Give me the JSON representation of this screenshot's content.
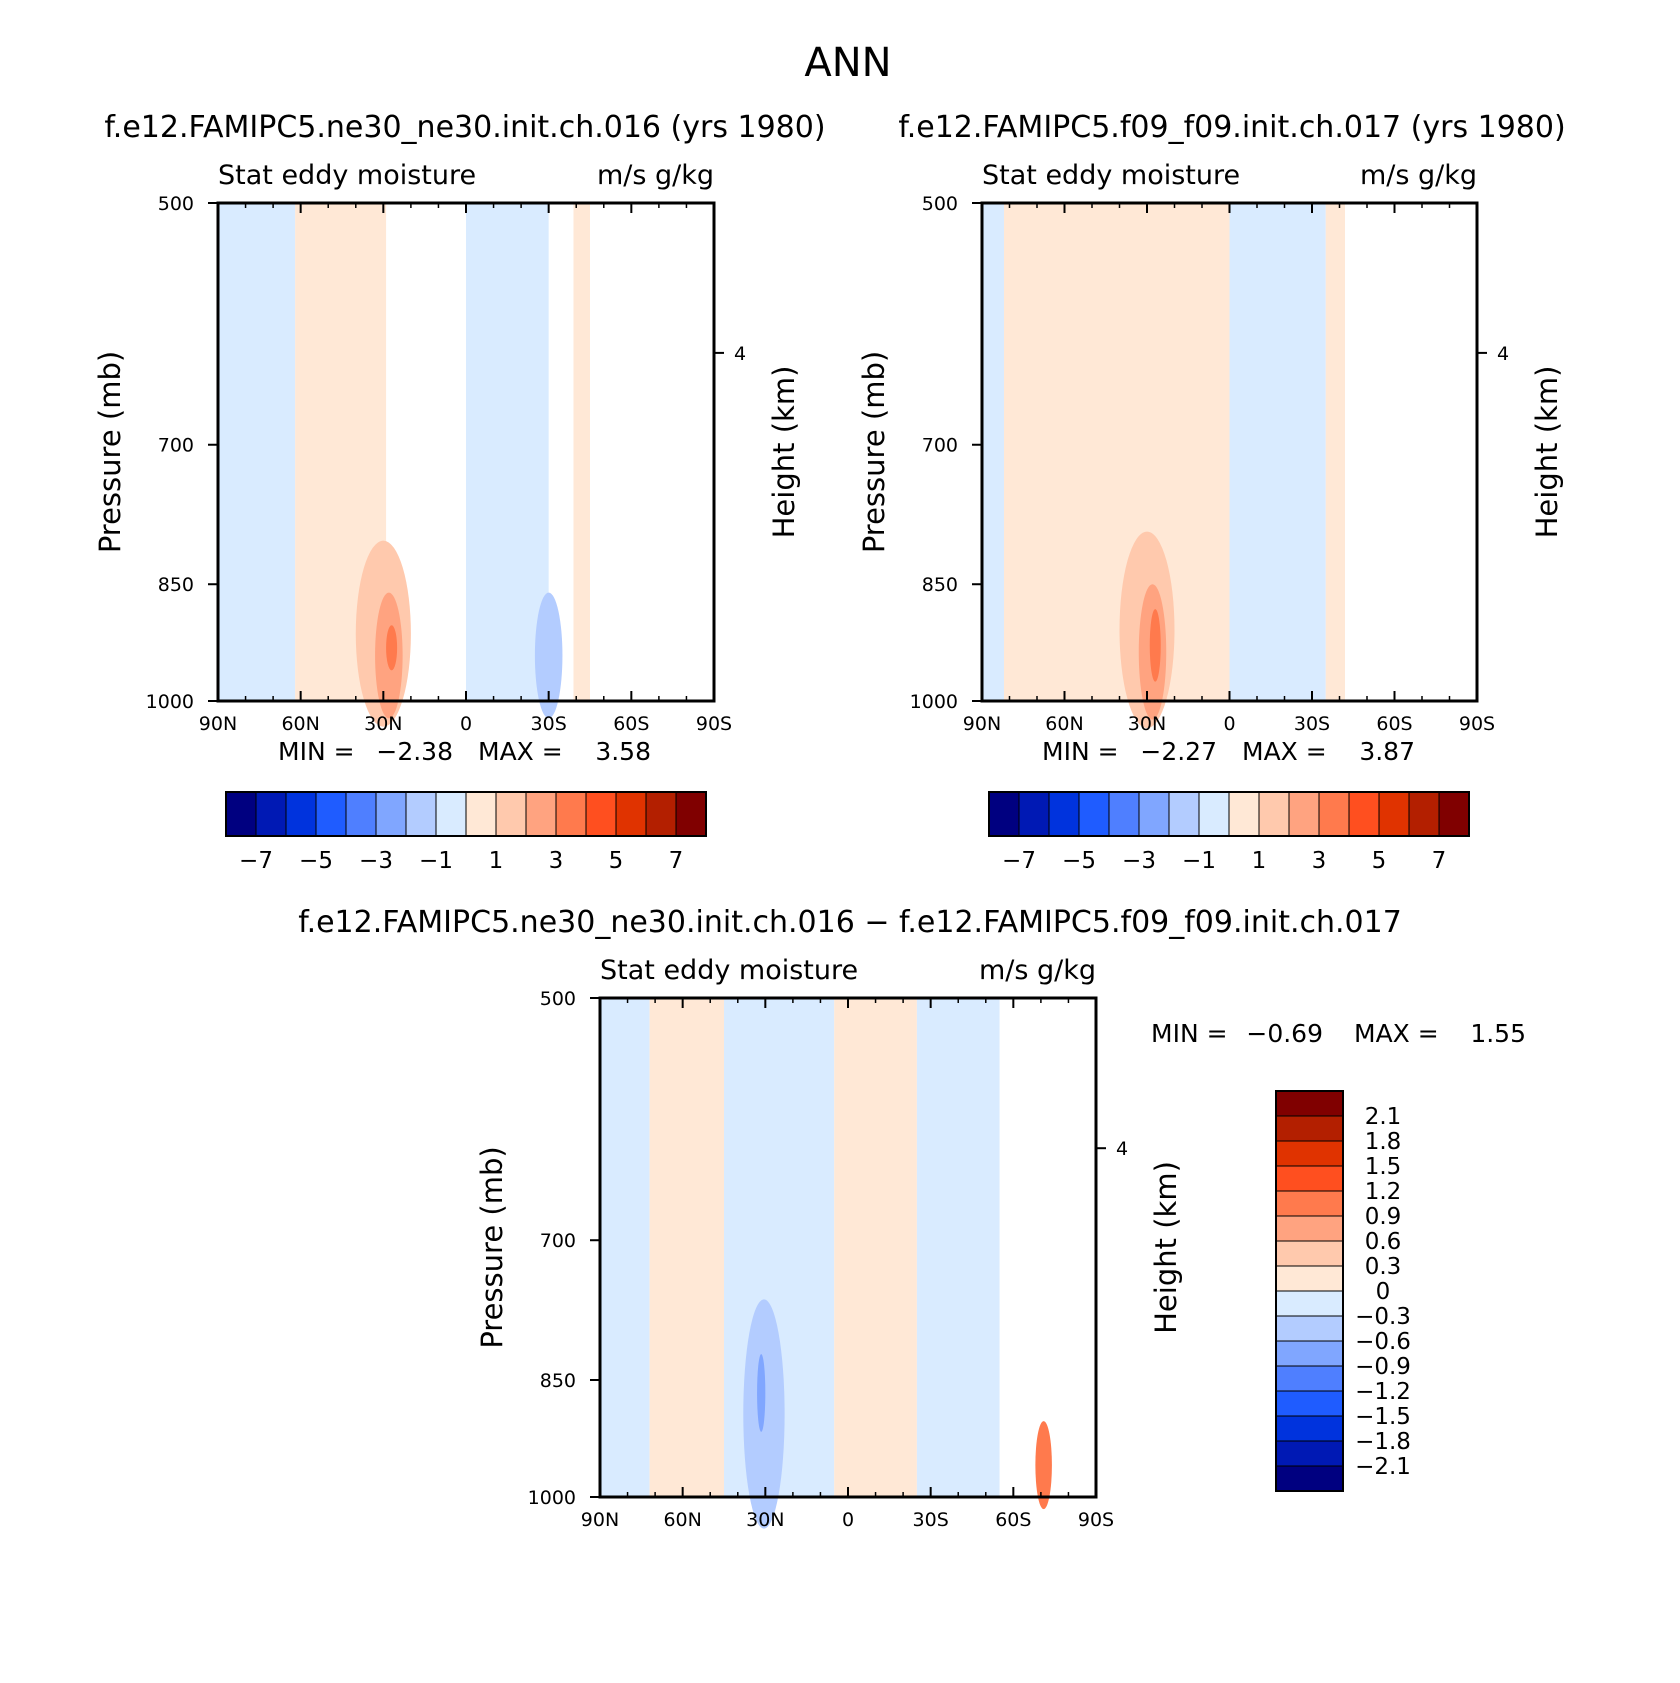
{
  "page_title": "ANN",
  "chart_data": [
    {
      "type": "heatmap",
      "id": "p1",
      "title": "f.e12.FAMIPC5.ne30_ne30.init.ch.016 (yrs 1980)",
      "subtitle_left": "Stat eddy moisture",
      "subtitle_right": "m/s g/kg",
      "xlabel": "",
      "ylabel": "Pressure (mb)",
      "ylabel_right": "Height (km)",
      "x_ticks": [
        "90N",
        "60N",
        "30N",
        "0",
        "30S",
        "60S",
        "90S"
      ],
      "y_ticks": [
        "500",
        "700",
        "850",
        "1000"
      ],
      "y_right_ticks": [
        "4"
      ],
      "ylim": [
        1000,
        500
      ],
      "min_text": "MIN =",
      "min_value": "−2.38",
      "max_text": "MAX =",
      "max_value": "3.58",
      "colorbar": {
        "orientation": "horizontal",
        "colors": [
          "#000080",
          "#0019B4",
          "#0033DD",
          "#1F5CFF",
          "#4F7FFF",
          "#80A6FF",
          "#B3CCFF",
          "#D9EBFF",
          "#FFE8D6",
          "#FFC9AD",
          "#FFA380",
          "#FF7A4D",
          "#FF4F1F",
          "#E03300",
          "#B31F00",
          "#800000"
        ],
        "labels": [
          "−7",
          "−5",
          "−3",
          "−1",
          "1",
          "3",
          "5",
          "7"
        ]
      },
      "field_ranges": [
        {
          "lat": [
            90,
            62
          ],
          "p": [
            500,
            1000
          ],
          "value_range": "-1 to 0"
        },
        {
          "lat": [
            62,
            29
          ],
          "p": [
            500,
            1000
          ],
          "value_range": "0 to 1"
        },
        {
          "lat": [
            40,
            20
          ],
          "p": [
            800,
            1000
          ],
          "value_range": "1 to 2"
        },
        {
          "lat": [
            33,
            23
          ],
          "p": [
            860,
            1000
          ],
          "value_range": "2 to 3"
        },
        {
          "lat": [
            29,
            25
          ],
          "p": [
            900,
            950
          ],
          "value_range": "3 to 4"
        },
        {
          "lat": [
            0,
            -30
          ],
          "p": [
            500,
            1000
          ],
          "value_range": "-1 to 0"
        },
        {
          "lat": [
            -25,
            -35
          ],
          "p": [
            860,
            1000
          ],
          "value_range": "-2 to -1"
        },
        {
          "lat": [
            -39,
            -45
          ],
          "p": [
            500,
            1000
          ],
          "value_range": "0 to 1"
        }
      ]
    },
    {
      "type": "heatmap",
      "id": "p2",
      "title": "f.e12.FAMIPC5.f09_f09.init.ch.017 (yrs 1980)",
      "subtitle_left": "Stat eddy moisture",
      "subtitle_right": "m/s g/kg",
      "xlabel": "",
      "ylabel": "Pressure (mb)",
      "ylabel_right": "Height (km)",
      "x_ticks": [
        "90N",
        "60N",
        "30N",
        "0",
        "30S",
        "60S",
        "90S"
      ],
      "y_ticks": [
        "500",
        "700",
        "850",
        "1000"
      ],
      "y_right_ticks": [
        "4"
      ],
      "ylim": [
        1000,
        500
      ],
      "min_text": "MIN =",
      "min_value": "−2.27",
      "max_text": "MAX =",
      "max_value": "3.87",
      "colorbar": {
        "orientation": "horizontal",
        "colors": [
          "#000080",
          "#0019B4",
          "#0033DD",
          "#1F5CFF",
          "#4F7FFF",
          "#80A6FF",
          "#B3CCFF",
          "#D9EBFF",
          "#FFE8D6",
          "#FFC9AD",
          "#FFA380",
          "#FF7A4D",
          "#FF4F1F",
          "#E03300",
          "#B31F00",
          "#800000"
        ],
        "labels": [
          "−7",
          "−5",
          "−3",
          "−1",
          "1",
          "3",
          "5",
          "7"
        ]
      },
      "field_ranges": [
        {
          "lat": [
            90,
            82
          ],
          "p": [
            500,
            1000
          ],
          "value_range": "-1 to 0"
        },
        {
          "lat": [
            82,
            0
          ],
          "p": [
            500,
            1000
          ],
          "value_range": "0 to 1"
        },
        {
          "lat": [
            40,
            20
          ],
          "p": [
            790,
            1000
          ],
          "value_range": "1 to 2"
        },
        {
          "lat": [
            33,
            23
          ],
          "p": [
            850,
            1000
          ],
          "value_range": "2 to 3"
        },
        {
          "lat": [
            29,
            25
          ],
          "p": [
            880,
            960
          ],
          "value_range": "3 to 4"
        },
        {
          "lat": [
            0,
            -35
          ],
          "p": [
            500,
            1000
          ],
          "value_range": "-1 to 0"
        },
        {
          "lat": [
            -35,
            -42
          ],
          "p": [
            500,
            1000
          ],
          "value_range": "0 to 1"
        }
      ]
    },
    {
      "type": "heatmap",
      "id": "p3",
      "title": "f.e12.FAMIPC5.ne30_ne30.init.ch.016 − f.e12.FAMIPC5.f09_f09.init.ch.017",
      "subtitle_left": "Stat eddy moisture",
      "subtitle_right": "m/s g/kg",
      "xlabel": "",
      "ylabel": "Pressure (mb)",
      "ylabel_right": "Height (km)",
      "x_ticks": [
        "90N",
        "60N",
        "30N",
        "0",
        "30S",
        "60S",
        "90S"
      ],
      "y_ticks": [
        "500",
        "700",
        "850",
        "1000"
      ],
      "y_right_ticks": [
        "4"
      ],
      "ylim": [
        1000,
        500
      ],
      "min_text": "MIN =",
      "min_value": "−0.69",
      "max_text": "MAX =",
      "max_value": "1.55",
      "colorbar": {
        "orientation": "vertical",
        "colors": [
          "#800000",
          "#B31F00",
          "#E03300",
          "#FF4F1F",
          "#FF7A4D",
          "#FFA380",
          "#FFC9AD",
          "#FFE8D6",
          "#D9EBFF",
          "#B3CCFF",
          "#80A6FF",
          "#4F7FFF",
          "#1F5CFF",
          "#0033DD",
          "#0019B4",
          "#000080"
        ],
        "labels": [
          "2.1",
          "1.8",
          "1.5",
          "1.2",
          "0.9",
          "0.6",
          "0.3",
          "0",
          "−0.3",
          "−0.6",
          "−0.9",
          "−1.2",
          "−1.5",
          "−1.8",
          "−2.1"
        ]
      },
      "field_ranges": [
        {
          "lat": [
            90,
            72
          ],
          "p": [
            500,
            1000
          ],
          "value_range": "-0.3 to 0"
        },
        {
          "lat": [
            72,
            45
          ],
          "p": [
            500,
            1000
          ],
          "value_range": "0 to 0.3"
        },
        {
          "lat": [
            45,
            5
          ],
          "p": [
            500,
            1000
          ],
          "value_range": "-0.3 to 0"
        },
        {
          "lat": [
            38,
            23
          ],
          "p": [
            760,
            1000
          ],
          "value_range": "-0.6 to -0.3"
        },
        {
          "lat": [
            33,
            30
          ],
          "p": [
            820,
            900
          ],
          "value_range": "-0.9 to -0.6"
        },
        {
          "lat": [
            5,
            -25
          ],
          "p": [
            500,
            1000
          ],
          "value_range": "0 to 0.3"
        },
        {
          "lat": [
            -25,
            -55
          ],
          "p": [
            500,
            1000
          ],
          "value_range": "-0.3 to 0"
        },
        {
          "lat": [
            -68,
            -74
          ],
          "p": [
            900,
            1000
          ],
          "value_range": "0.6 to 1.55"
        }
      ]
    }
  ]
}
